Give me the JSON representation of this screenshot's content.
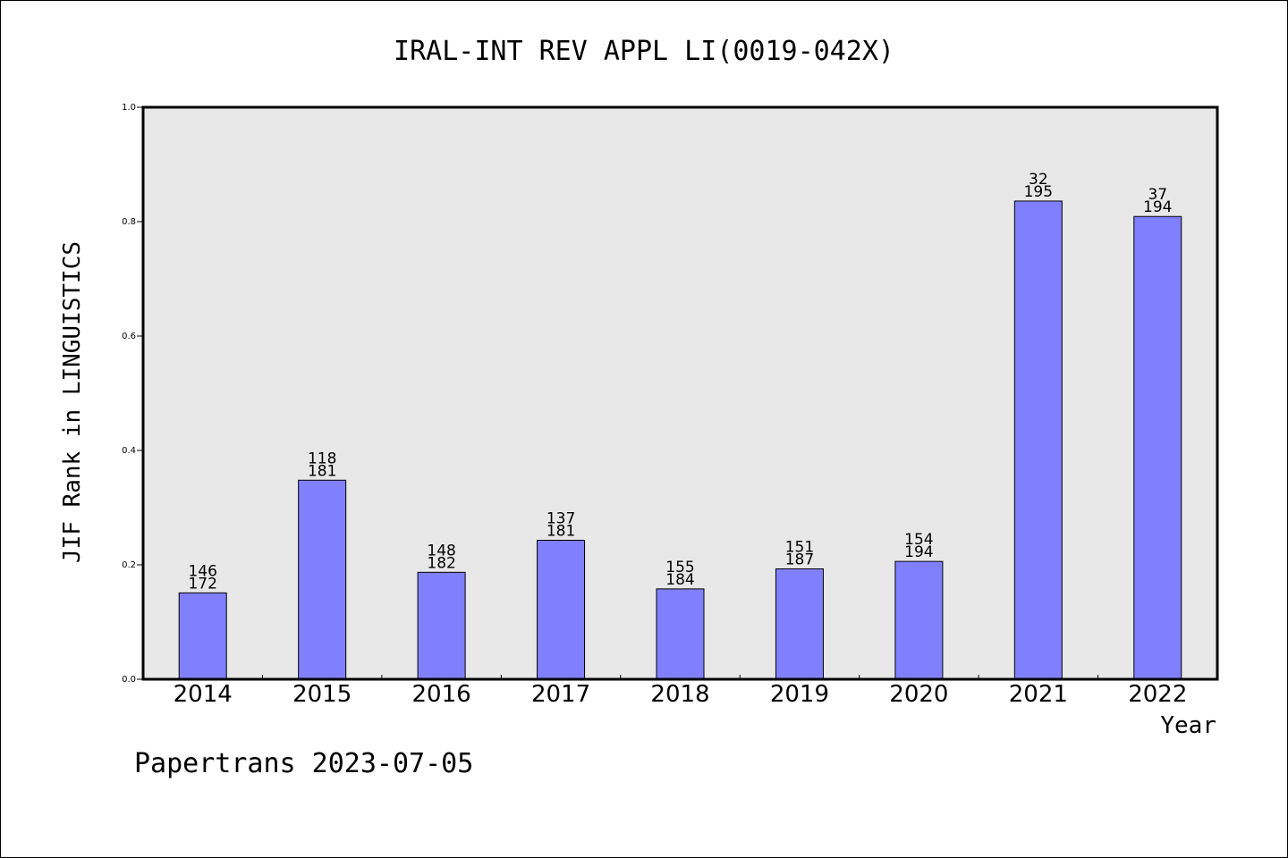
{
  "chart_data": {
    "type": "bar",
    "title": "IRAL-INT REV APPL LI(0019-042X)",
    "xlabel": "Year",
    "ylabel": "JIF Rank in LINGUISTICS",
    "ylim": [
      0,
      1.0
    ],
    "yticks": [
      "0.0",
      "0.2",
      "0.4",
      "0.6",
      "0.8",
      "1.0"
    ],
    "categories": [
      "2014",
      "2015",
      "2016",
      "2017",
      "2018",
      "2019",
      "2020",
      "2021",
      "2022"
    ],
    "values": [
      0.151,
      0.348,
      0.187,
      0.243,
      0.158,
      0.193,
      0.206,
      0.836,
      0.809
    ],
    "rank": [
      "146",
      "118",
      "148",
      "137",
      "155",
      "151",
      "154",
      "32",
      "37"
    ],
    "total": [
      "172",
      "181",
      "182",
      "181",
      "184",
      "187",
      "194",
      "195",
      "194"
    ],
    "grid": false,
    "colors": {
      "bar_fill": "#8080ff",
      "bar_stroke": "#000000",
      "plot_bg": "#e8e8e8",
      "axis": "#000000"
    }
  },
  "footer": {
    "watermark": "Papertrans 2023-07-05"
  }
}
